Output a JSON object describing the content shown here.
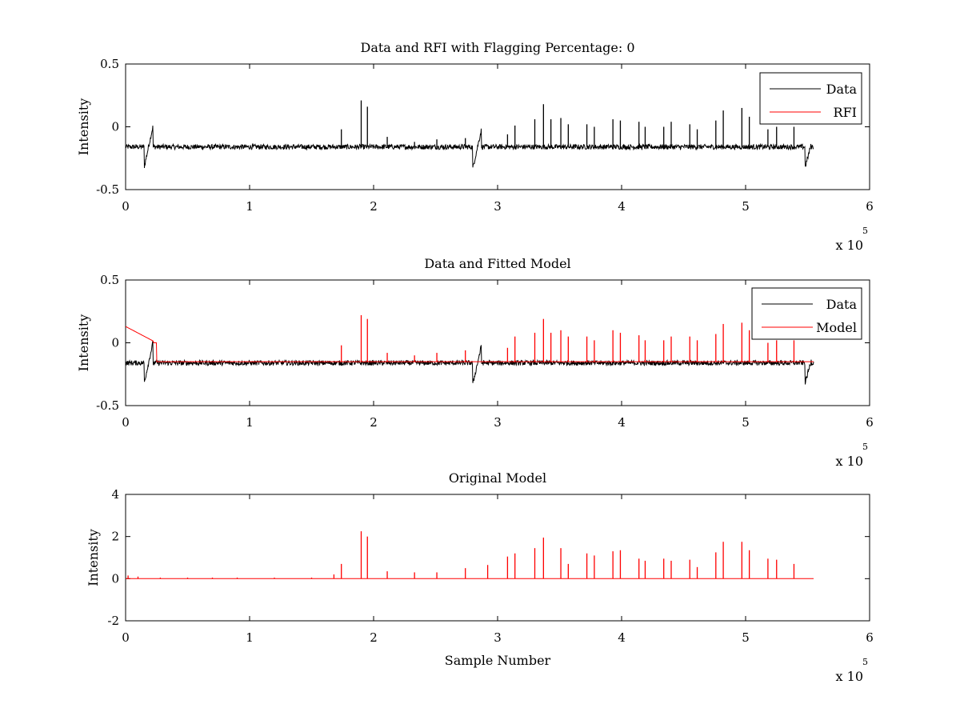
{
  "chart_data": [
    {
      "type": "line",
      "title": "Data and RFI with Flagging Percentage: 0",
      "xlabel": "",
      "ylabel": "Intensity",
      "xlim": [
        0,
        600000
      ],
      "ylim": [
        -0.5,
        0.5
      ],
      "xticks": [
        "0",
        "1",
        "2",
        "3",
        "4",
        "5",
        "6"
      ],
      "yticks": [
        "0.5",
        "0",
        "-0.5"
      ],
      "x_multiplier": "x 10",
      "x_exponent": "5",
      "legend": {
        "location": "top-right",
        "entries": [
          "Data",
          "RFI"
        ]
      },
      "series": [
        {
          "name": "Data",
          "color": "#000000",
          "baseline": -0.16,
          "noise": 0.02,
          "range": [
            0,
            555000
          ],
          "dips": [
            {
              "x": 0,
              "y": 0.1
            },
            {
              "x": 15000,
              "y": -0.32
            },
            {
              "x": 22000,
              "y": 0.0
            },
            {
              "x": 280000,
              "y": -0.33
            },
            {
              "x": 287000,
              "y": -0.02
            },
            {
              "x": 548000,
              "y": -0.32
            },
            {
              "x": 553000,
              "y": -0.14
            }
          ],
          "spikes": [
            {
              "x": 174000,
              "y": -0.02
            },
            {
              "x": 190000,
              "y": 0.21
            },
            {
              "x": 195000,
              "y": 0.16
            },
            {
              "x": 211000,
              "y": -0.08
            },
            {
              "x": 233000,
              "y": -0.12
            },
            {
              "x": 251000,
              "y": -0.1
            },
            {
              "x": 274000,
              "y": -0.09
            },
            {
              "x": 308000,
              "y": -0.06
            },
            {
              "x": 314000,
              "y": 0.01
            },
            {
              "x": 330000,
              "y": 0.06
            },
            {
              "x": 337000,
              "y": 0.18
            },
            {
              "x": 343000,
              "y": 0.06
            },
            {
              "x": 351000,
              "y": 0.07
            },
            {
              "x": 357000,
              "y": 0.02
            },
            {
              "x": 372000,
              "y": 0.02
            },
            {
              "x": 378000,
              "y": 0.0
            },
            {
              "x": 393000,
              "y": 0.06
            },
            {
              "x": 399000,
              "y": 0.05
            },
            {
              "x": 414000,
              "y": 0.04
            },
            {
              "x": 419000,
              "y": 0.0
            },
            {
              "x": 434000,
              "y": 0.0
            },
            {
              "x": 440000,
              "y": 0.04
            },
            {
              "x": 455000,
              "y": 0.02
            },
            {
              "x": 461000,
              "y": -0.02
            },
            {
              "x": 476000,
              "y": 0.05
            },
            {
              "x": 482000,
              "y": 0.13
            },
            {
              "x": 497000,
              "y": 0.15
            },
            {
              "x": 503000,
              "y": 0.08
            },
            {
              "x": 518000,
              "y": -0.02
            },
            {
              "x": 525000,
              "y": 0.0
            },
            {
              "x": 539000,
              "y": 0.0
            }
          ]
        },
        {
          "name": "RFI",
          "color": "#ff0000",
          "values": []
        }
      ]
    },
    {
      "type": "line",
      "title": "Data and Fitted Model",
      "xlabel": "",
      "ylabel": "Intensity",
      "xlim": [
        0,
        600000
      ],
      "ylim": [
        -0.5,
        0.5
      ],
      "xticks": [
        "0",
        "1",
        "2",
        "3",
        "4",
        "5",
        "6"
      ],
      "yticks": [
        "0.5",
        "0",
        "-0.5"
      ],
      "x_multiplier": "x 10",
      "x_exponent": "5",
      "legend": {
        "location": "top-right",
        "entries": [
          "Data",
          "Model"
        ]
      },
      "series": [
        {
          "name": "Data",
          "color": "#000000",
          "baseline": -0.16,
          "noise": 0.02,
          "range": [
            0,
            555000
          ],
          "dips": [
            {
              "x": 0,
              "y": 0.1
            },
            {
              "x": 15000,
              "y": -0.32
            },
            {
              "x": 22000,
              "y": 0.0
            },
            {
              "x": 280000,
              "y": -0.33
            },
            {
              "x": 287000,
              "y": -0.02
            },
            {
              "x": 548000,
              "y": -0.32
            },
            {
              "x": 553000,
              "y": -0.14
            }
          ],
          "spikes": []
        },
        {
          "name": "Model",
          "color": "#ff0000",
          "baseline": -0.15,
          "range": [
            0,
            555000
          ],
          "start_level": 0.13,
          "start_end": 25000,
          "spikes": [
            {
              "x": 174000,
              "y": -0.02
            },
            {
              "x": 190000,
              "y": 0.22
            },
            {
              "x": 195000,
              "y": 0.19
            },
            {
              "x": 211000,
              "y": -0.08
            },
            {
              "x": 233000,
              "y": -0.1
            },
            {
              "x": 251000,
              "y": -0.08
            },
            {
              "x": 274000,
              "y": -0.06
            },
            {
              "x": 308000,
              "y": -0.04
            },
            {
              "x": 314000,
              "y": 0.05
            },
            {
              "x": 330000,
              "y": 0.08
            },
            {
              "x": 337000,
              "y": 0.19
            },
            {
              "x": 343000,
              "y": 0.08
            },
            {
              "x": 351000,
              "y": 0.1
            },
            {
              "x": 357000,
              "y": 0.05
            },
            {
              "x": 372000,
              "y": 0.05
            },
            {
              "x": 378000,
              "y": 0.02
            },
            {
              "x": 393000,
              "y": 0.1
            },
            {
              "x": 399000,
              "y": 0.08
            },
            {
              "x": 414000,
              "y": 0.06
            },
            {
              "x": 419000,
              "y": 0.02
            },
            {
              "x": 434000,
              "y": 0.02
            },
            {
              "x": 440000,
              "y": 0.05
            },
            {
              "x": 455000,
              "y": 0.05
            },
            {
              "x": 461000,
              "y": 0.02
            },
            {
              "x": 476000,
              "y": 0.07
            },
            {
              "x": 482000,
              "y": 0.15
            },
            {
              "x": 497000,
              "y": 0.16
            },
            {
              "x": 503000,
              "y": 0.1
            },
            {
              "x": 518000,
              "y": 0.0
            },
            {
              "x": 525000,
              "y": 0.02
            },
            {
              "x": 539000,
              "y": 0.02
            }
          ]
        }
      ]
    },
    {
      "type": "line",
      "title": "Original Model",
      "xlabel": "Sample Number",
      "ylabel": "Intensity",
      "xlim": [
        0,
        600000
      ],
      "ylim": [
        -2,
        4
      ],
      "xticks": [
        "0",
        "1",
        "2",
        "3",
        "4",
        "5",
        "6"
      ],
      "yticks": [
        "4",
        "2",
        "0",
        "-2"
      ],
      "x_multiplier": "x 10",
      "x_exponent": "5",
      "series": [
        {
          "name": "",
          "color": "#ff0000",
          "baseline": 0.0,
          "range": [
            0,
            555000
          ],
          "spikes": [
            {
              "x": 2000,
              "y": 0.15
            },
            {
              "x": 10000,
              "y": 0.1
            },
            {
              "x": 28000,
              "y": 0.05
            },
            {
              "x": 50000,
              "y": 0.05
            },
            {
              "x": 70000,
              "y": 0.05
            },
            {
              "x": 90000,
              "y": 0.05
            },
            {
              "x": 120000,
              "y": 0.05
            },
            {
              "x": 150000,
              "y": 0.05
            },
            {
              "x": 168000,
              "y": 0.2
            },
            {
              "x": 174000,
              "y": 0.7
            },
            {
              "x": 190000,
              "y": 2.25
            },
            {
              "x": 195000,
              "y": 2.0
            },
            {
              "x": 211000,
              "y": 0.35
            },
            {
              "x": 233000,
              "y": 0.3
            },
            {
              "x": 251000,
              "y": 0.3
            },
            {
              "x": 274000,
              "y": 0.5
            },
            {
              "x": 292000,
              "y": 0.65
            },
            {
              "x": 308000,
              "y": 1.05
            },
            {
              "x": 314000,
              "y": 1.2
            },
            {
              "x": 330000,
              "y": 1.45
            },
            {
              "x": 337000,
              "y": 1.95
            },
            {
              "x": 351000,
              "y": 1.45
            },
            {
              "x": 357000,
              "y": 0.7
            },
            {
              "x": 372000,
              "y": 1.2
            },
            {
              "x": 378000,
              "y": 1.1
            },
            {
              "x": 393000,
              "y": 1.3
            },
            {
              "x": 399000,
              "y": 1.35
            },
            {
              "x": 414000,
              "y": 0.95
            },
            {
              "x": 419000,
              "y": 0.85
            },
            {
              "x": 434000,
              "y": 0.95
            },
            {
              "x": 440000,
              "y": 0.85
            },
            {
              "x": 455000,
              "y": 0.9
            },
            {
              "x": 461000,
              "y": 0.55
            },
            {
              "x": 476000,
              "y": 1.25
            },
            {
              "x": 482000,
              "y": 1.75
            },
            {
              "x": 497000,
              "y": 1.75
            },
            {
              "x": 503000,
              "y": 1.35
            },
            {
              "x": 518000,
              "y": 0.95
            },
            {
              "x": 525000,
              "y": 0.9
            },
            {
              "x": 539000,
              "y": 0.7
            }
          ]
        }
      ]
    }
  ]
}
